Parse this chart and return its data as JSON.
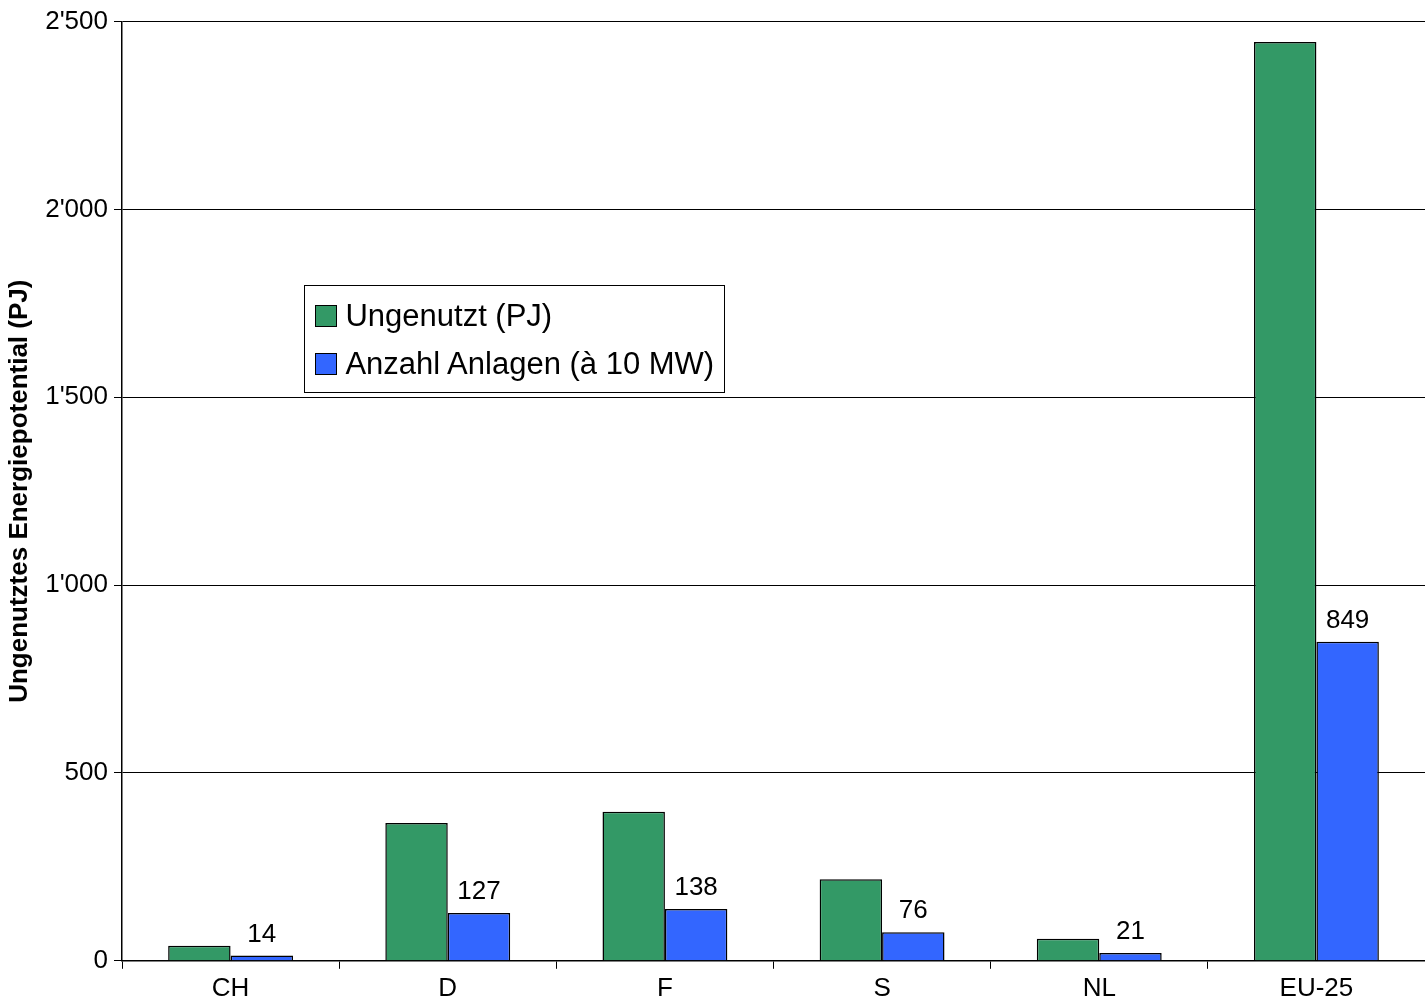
{
  "chart_data": {
    "type": "bar",
    "ylabel": "Ungenutztes Energiepotential (PJ)",
    "categories": [
      "CH",
      "D",
      "F",
      "S",
      "NL",
      "EU-25"
    ],
    "series": [
      {
        "name": "Ungenutzt (PJ)",
        "color": "#339966",
        "values": [
          40,
          367,
          397,
          217,
          59,
          2446
        ]
      },
      {
        "name": "Anzahl Anlagen (à 10 MW)",
        "color": "#3366ff",
        "values": [
          14,
          127,
          138,
          76,
          21,
          849
        ],
        "value_labels": [
          "14",
          "127",
          "138",
          "76",
          "21",
          "849"
        ]
      }
    ],
    "ylim": [
      0,
      2500
    ],
    "yticks": [
      0,
      {
        "value": 500,
        "label": "500"
      },
      {
        "value": 1000,
        "label": "1'000"
      },
      {
        "value": 1500,
        "label": "1'500"
      },
      {
        "value": 2000,
        "label": "2'000"
      },
      {
        "value": 2500,
        "label": "2'500"
      }
    ],
    "grid": "y",
    "legend": "top left"
  }
}
